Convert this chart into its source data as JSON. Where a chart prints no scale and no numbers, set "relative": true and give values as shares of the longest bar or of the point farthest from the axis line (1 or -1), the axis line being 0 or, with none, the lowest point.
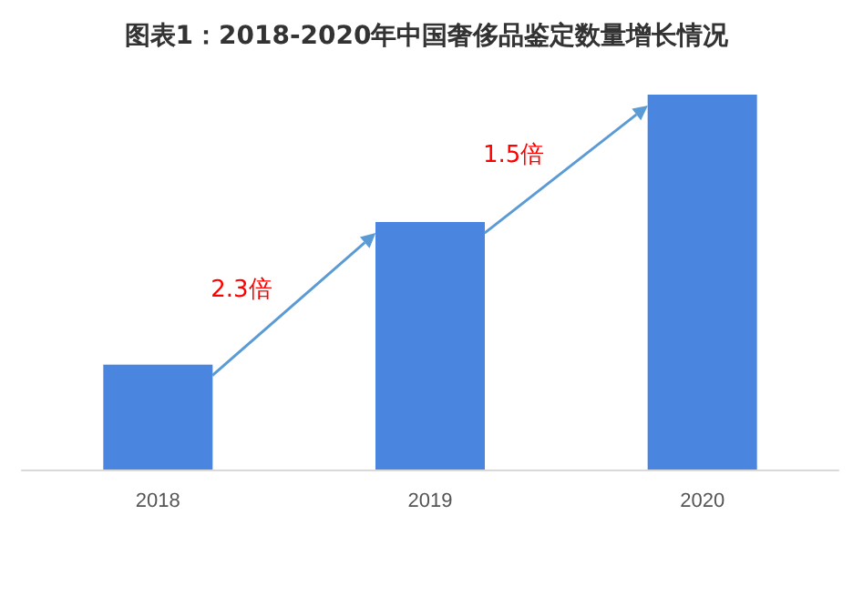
{
  "chart_data": {
    "type": "bar",
    "title": "图表1：2018-2020年中国奢侈品鉴定数量增长情况",
    "categories": [
      "2018",
      "2019",
      "2020"
    ],
    "values": [
      0.28,
      0.66,
      1
    ],
    "color": "#4a86e0",
    "relative": true,
    "annotations": [
      "2.3倍",
      "1.5倍"
    ]
  }
}
